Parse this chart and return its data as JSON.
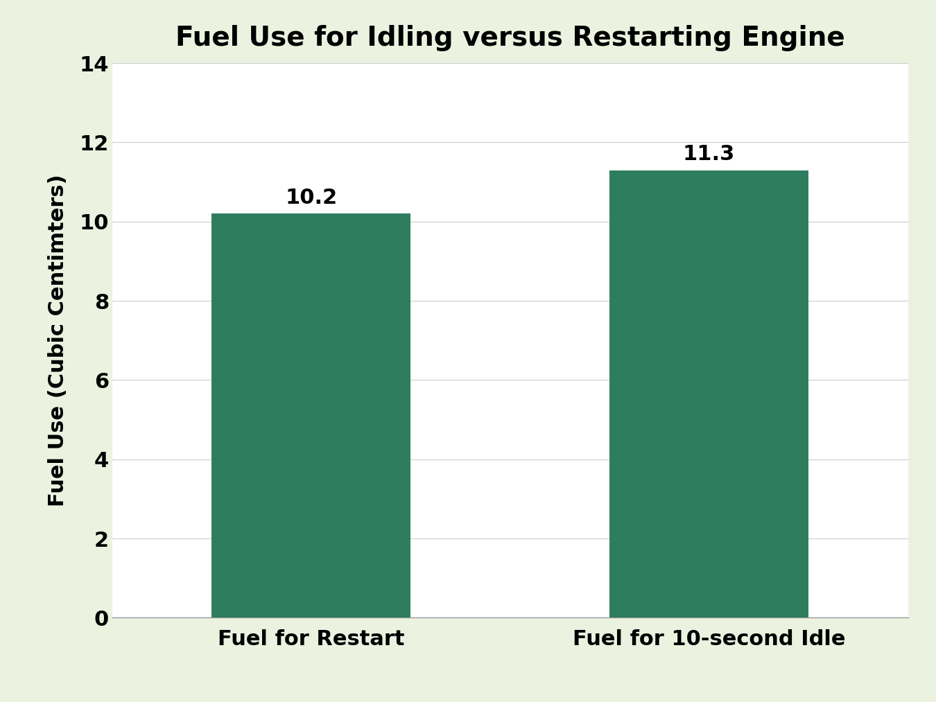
{
  "title": "Fuel Use for Idling versus Restarting Engine",
  "categories": [
    "Fuel for Restart",
    "Fuel for 10-second Idle"
  ],
  "values": [
    10.2,
    11.3
  ],
  "bar_color": "#2E7D5E",
  "ylabel": "Fuel Use (Cubic Centimters)",
  "ylim": [
    0,
    14
  ],
  "yticks": [
    0,
    2,
    4,
    6,
    8,
    10,
    12,
    14
  ],
  "background_color": "#EBF3E0",
  "plot_background": "#FFFFFF",
  "title_fontsize": 28,
  "label_fontsize": 22,
  "tick_fontsize": 22,
  "annotation_fontsize": 22,
  "bar_width": 0.5
}
